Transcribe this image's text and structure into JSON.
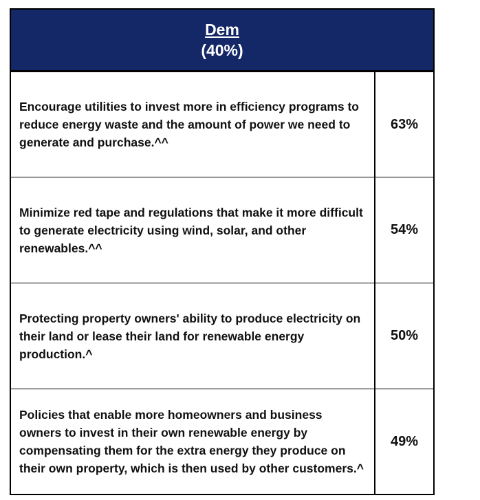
{
  "header": {
    "title": "Dem",
    "subtitle": "(40%)"
  },
  "rows": [
    {
      "text": "Encourage utilities to invest more in efficiency programs to reduce energy waste and the amount of power we need to generate and purchase.^^",
      "value": "63%"
    },
    {
      "text": "Minimize red tape and regulations that make it more difficult to generate electricity using wind, solar, and other renewables.^^",
      "value": "54%"
    },
    {
      "text": "Protecting property owners' ability to produce electricity on their land or lease their land for renewable energy production.^",
      "value": "50%"
    },
    {
      "text": "Policies that enable more homeowners and business owners to invest in their own renewable energy by compensating them for the extra energy they produce on their own property, which is then used by other customers.^",
      "value": "49%"
    }
  ]
}
